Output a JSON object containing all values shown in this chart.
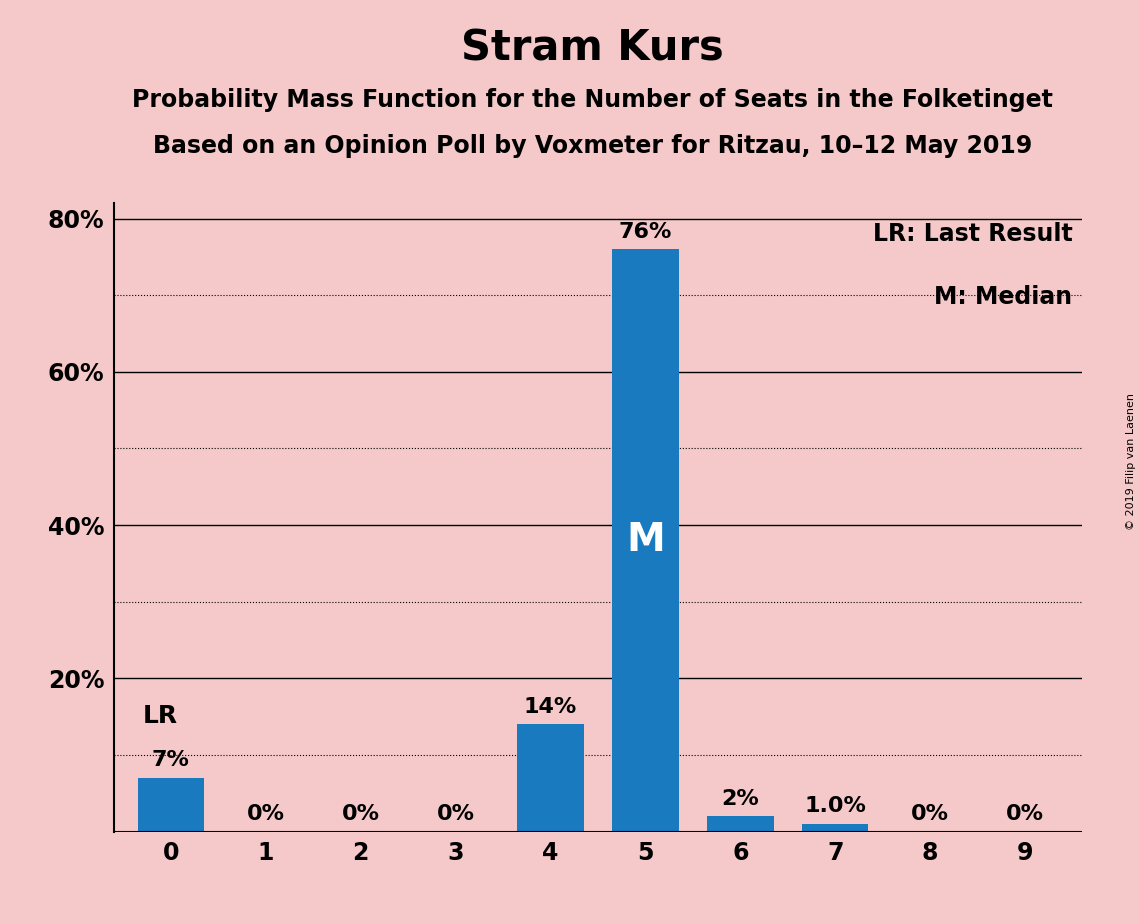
{
  "title": "Stram Kurs",
  "subtitle1": "Probability Mass Function for the Number of Seats in the Folketinget",
  "subtitle2": "Based on an Opinion Poll by Voxmeter for Ritzau, 10–12 May 2019",
  "categories": [
    0,
    1,
    2,
    3,
    4,
    5,
    6,
    7,
    8,
    9
  ],
  "values": [
    0.07,
    0.0,
    0.0,
    0.0,
    0.14,
    0.76,
    0.02,
    0.01,
    0.0,
    0.0
  ],
  "bar_color": "#1a7abf",
  "background_color": "#f5c9c9",
  "ylim": [
    0,
    0.82
  ],
  "yticks_solid": [
    0.0,
    0.2,
    0.4,
    0.6,
    0.8
  ],
  "yticks_dotted": [
    0.1,
    0.3,
    0.5,
    0.7
  ],
  "ytick_positions": [
    0.2,
    0.4,
    0.6,
    0.8
  ],
  "ytick_labels": [
    "20%",
    "40%",
    "60%",
    "80%"
  ],
  "bar_labels": [
    "7%",
    "0%",
    "0%",
    "0%",
    "14%",
    "76%",
    "2%",
    "1.0%",
    "0%",
    "0%"
  ],
  "median_bar_index": 5,
  "median_label": "M",
  "lr_bar_index": 0,
  "lr_label": "LR",
  "legend_text1": "LR: Last Result",
  "legend_text2": "M: Median",
  "watermark": "© 2019 Filip van Laenen",
  "title_fontsize": 30,
  "subtitle_fontsize": 17,
  "tick_fontsize": 17,
  "bar_label_fontsize": 16,
  "legend_fontsize": 17,
  "lr_label_fontsize": 18,
  "median_label_fontsize": 28,
  "watermark_fontsize": 8
}
